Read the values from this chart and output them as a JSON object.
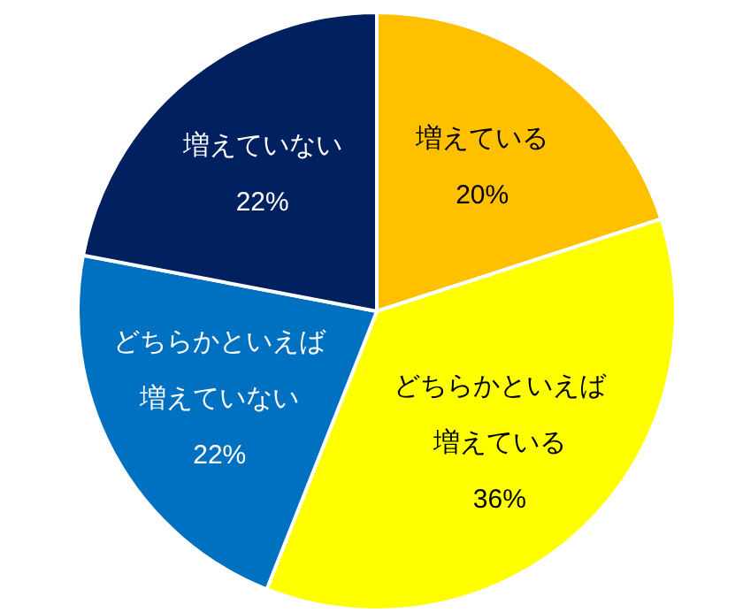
{
  "chart_data": {
    "type": "pie",
    "categories": [
      "増えている",
      "どちらかといえば増えている",
      "どちらかといえば増えていない",
      "増えていない"
    ],
    "values": [
      20,
      36,
      22,
      22
    ],
    "colors": [
      "#ffc000",
      "#ffff00",
      "#0070c0",
      "#002060"
    ],
    "value_labels": [
      "20%",
      "36%",
      "22%",
      "22%"
    ]
  }
}
